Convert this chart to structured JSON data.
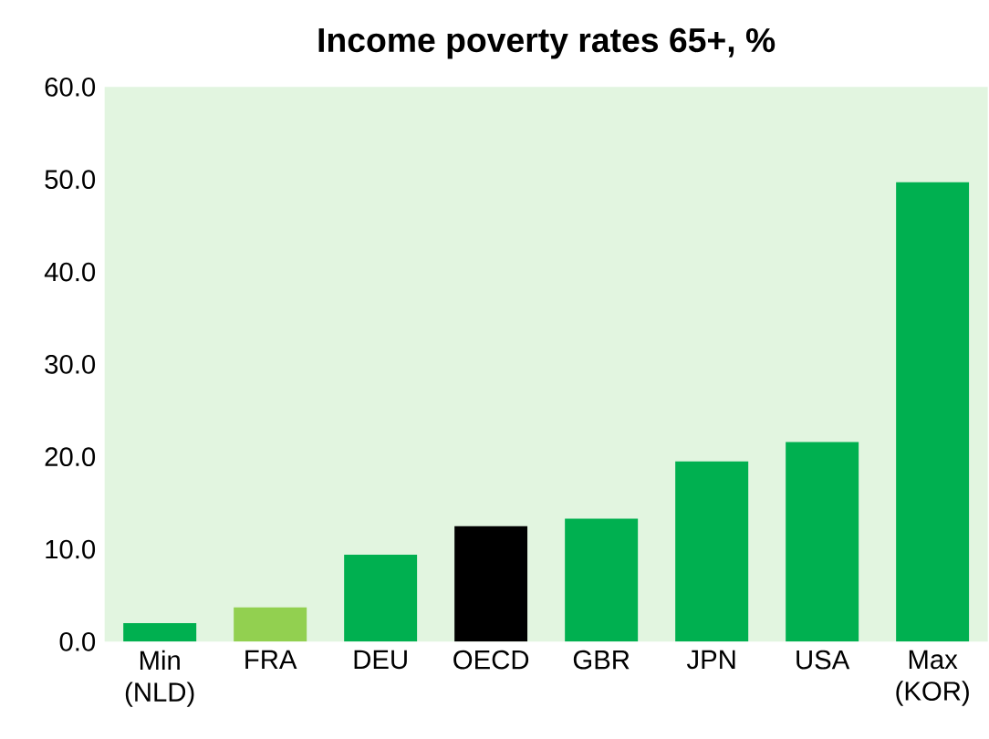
{
  "chart_data": {
    "type": "bar",
    "title": "Income poverty rates 65+, %",
    "categories": [
      "Min (NLD)",
      "FRA",
      "DEU",
      "OECD",
      "GBR",
      "JPN",
      "USA",
      "Max (KOR)"
    ],
    "values": [
      2.0,
      3.7,
      9.4,
      12.5,
      13.3,
      19.5,
      21.6,
      49.7
    ],
    "colors": [
      "#00b050",
      "#92d050",
      "#00b050",
      "#000000",
      "#00b050",
      "#00b050",
      "#00b050",
      "#00b050"
    ],
    "ylim": [
      0,
      60
    ],
    "yticks": [
      {
        "value": 0,
        "label": "0.0"
      },
      {
        "value": 10,
        "label": "10.0"
      },
      {
        "value": 20,
        "label": "20.0"
      },
      {
        "value": 30,
        "label": "30.0"
      },
      {
        "value": 40,
        "label": "40.0"
      },
      {
        "value": 50,
        "label": "50.0"
      },
      {
        "value": 60,
        "label": "60.0"
      }
    ],
    "grid": false
  }
}
